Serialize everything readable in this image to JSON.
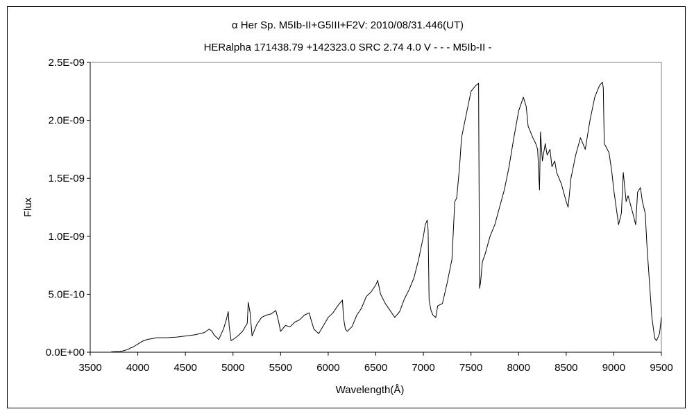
{
  "chart_data": {
    "type": "line",
    "title": "α Her  Sp. M5Ib-II+G5III+F2V:  2010/08/31.446(UT)",
    "subtitle": "HERalpha 171438.79 +142323.0 SRC 2.74 4.0 V - - - M5Ib-II -",
    "xlabel": "Wavelength(Å)",
    "ylabel": "Flux",
    "xlim": [
      3500,
      9500
    ],
    "ylim": [
      0,
      2.5e-09
    ],
    "x_ticks": [
      3500,
      4000,
      4500,
      5000,
      5500,
      6000,
      6500,
      7000,
      7500,
      8000,
      8500,
      9000,
      9500
    ],
    "x_tick_labels": [
      "3500",
      "4000",
      "4500",
      "5000",
      "5500",
      "6000",
      "6500",
      "7000",
      "7500",
      "8000",
      "8500",
      "9000",
      "9500"
    ],
    "y_ticks": [
      0,
      5e-10,
      1e-09,
      1.5e-09,
      2e-09,
      2.5e-09
    ],
    "y_tick_labels": [
      "0.0E+00",
      "5.0E-10",
      "1.0E-09",
      "1.5E-09",
      "2.0E-09",
      "2.5E-09"
    ],
    "grid": false,
    "legend": "none",
    "colors": {
      "line": "#000000",
      "axes": "#000000",
      "plot_border": "#808080"
    },
    "series": [
      {
        "x": [
          3720,
          3740,
          3760,
          3780,
          3800,
          3820,
          3840,
          3860,
          3880,
          3900,
          3920,
          3950,
          4000,
          4050,
          4100,
          4200,
          4300,
          4400,
          4500,
          4600,
          4700,
          4750,
          4780,
          4800,
          4850,
          4900,
          4930,
          4950,
          4960,
          4980,
          5000,
          5050,
          5100,
          5150,
          5160,
          5180,
          5200,
          5250,
          5300,
          5350,
          5400,
          5450,
          5480,
          5500,
          5550,
          5600,
          5650,
          5700,
          5750,
          5800,
          5820,
          5850,
          5900,
          5950,
          6000,
          6050,
          6100,
          6150,
          6160,
          6180,
          6200,
          6250,
          6300,
          6350,
          6400,
          6450,
          6500,
          6520,
          6550,
          6600,
          6650,
          6700,
          6750,
          6800,
          6850,
          6900,
          6950,
          7000,
          7020,
          7040,
          7050,
          7060,
          7080,
          7100,
          7130,
          7150,
          7200,
          7250,
          7300,
          7330,
          7350,
          7380,
          7400,
          7450,
          7500,
          7550,
          7580,
          7590,
          7600,
          7620,
          7650,
          7700,
          7750,
          7800,
          7850,
          7900,
          7950,
          8000,
          8050,
          8080,
          8100,
          8150,
          8180,
          8200,
          8220,
          8230,
          8250,
          8280,
          8300,
          8330,
          8350,
          8380,
          8400,
          8450,
          8500,
          8520,
          8550,
          8600,
          8650,
          8700,
          8750,
          8800,
          8850,
          8880,
          8890,
          8900,
          8950,
          8980,
          9000,
          9050,
          9080,
          9100,
          9130,
          9150,
          9200,
          9230,
          9250,
          9280,
          9300,
          9330,
          9350,
          9400,
          9430,
          9450,
          9480,
          9500
        ],
        "y": [
          3e-12,
          4e-12,
          5e-12,
          6e-12,
          4e-12,
          8e-12,
          1e-11,
          1.5e-11,
          2e-11,
          2.5e-11,
          3.5e-11,
          4.5e-11,
          7e-11,
          9.5e-11,
          1.1e-10,
          1.25e-10,
          1.25e-10,
          1.3e-10,
          1.4e-10,
          1.5e-10,
          1.7e-10,
          2e-10,
          1.8e-10,
          1.5e-10,
          1.1e-10,
          2e-10,
          2.8e-10,
          3.5e-10,
          2.2e-10,
          1e-10,
          1.1e-10,
          1.4e-10,
          1.8e-10,
          2.5e-10,
          4.3e-10,
          3.4e-10,
          1.4e-10,
          2.4e-10,
          3e-10,
          3.2e-10,
          3.3e-10,
          3.6e-10,
          2.6e-10,
          1.8e-10,
          2.3e-10,
          2.2e-10,
          2.6e-10,
          2.8e-10,
          3.2e-10,
          3.4e-10,
          2.8e-10,
          2e-10,
          1.6e-10,
          2.3e-10,
          3e-10,
          3.4e-10,
          4e-10,
          4.5e-10,
          3e-10,
          2e-10,
          1.8e-10,
          2.2e-10,
          3.2e-10,
          3.8e-10,
          4.8e-10,
          5.2e-10,
          5.8e-10,
          6.2e-10,
          5e-10,
          4.2e-10,
          3.6e-10,
          3e-10,
          3.5e-10,
          4.6e-10,
          5.4e-10,
          6.4e-10,
          8e-10,
          1e-09,
          1.1e-09,
          1.14e-09,
          1.05e-09,
          4.5e-10,
          3.6e-10,
          3.2e-10,
          3e-10,
          4e-10,
          4.2e-10,
          6e-10,
          8e-10,
          1.3e-09,
          1.33e-09,
          1.6e-09,
          1.85e-09,
          2.05e-09,
          2.25e-09,
          2.3e-09,
          2.32e-09,
          5.5e-10,
          6e-10,
          7.8e-10,
          8.5e-10,
          1e-09,
          1.1e-09,
          1.25e-09,
          1.4e-09,
          1.6e-09,
          1.85e-09,
          2.08e-09,
          2.2e-09,
          2.12e-09,
          1.95e-09,
          1.85e-09,
          1.8e-09,
          1.75e-09,
          1.4e-09,
          1.9e-09,
          1.65e-09,
          1.8e-09,
          1.7e-09,
          1.75e-09,
          1.6e-09,
          1.65e-09,
          1.55e-09,
          1.45e-09,
          1.3e-09,
          1.25e-09,
          1.5e-09,
          1.7e-09,
          1.85e-09,
          1.75e-09,
          2e-09,
          2.2e-09,
          2.3e-09,
          2.33e-09,
          2.28e-09,
          1.8e-09,
          1.72e-09,
          1.55e-09,
          1.4e-09,
          1.1e-09,
          1.2e-09,
          1.55e-09,
          1.3e-09,
          1.35e-09,
          1.2e-09,
          1.1e-09,
          1.38e-09,
          1.42e-09,
          1.3e-09,
          1.2e-09,
          9e-10,
          3e-10,
          1.2e-10,
          1e-10,
          1.6e-10,
          3e-10
        ]
      }
    ]
  }
}
